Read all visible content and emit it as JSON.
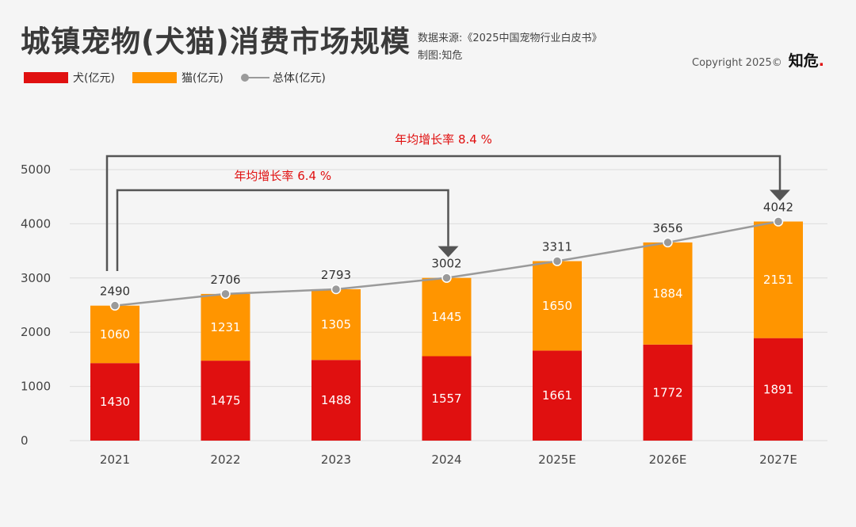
{
  "header": {
    "title": "城镇宠物(犬猫)消费市场规模",
    "source_line1": "数据来源:《2025中国宠物行业白皮书》",
    "source_line2": "制图:知危",
    "copyright": "Copyright 2025©",
    "brand": "知危",
    "brand_dot": "."
  },
  "colors": {
    "dog": "#e01010",
    "cat": "#ff9500",
    "total": "#9a9a9a",
    "arrow": "#555555",
    "cagr": "#e01010"
  },
  "chart_data": {
    "type": "bar",
    "stacked": true,
    "categories": [
      "2021",
      "2022",
      "2023",
      "2024",
      "2025E",
      "2026E",
      "2027E"
    ],
    "series": [
      {
        "name": "犬(亿元)",
        "values": [
          1430,
          1475,
          1488,
          1557,
          1661,
          1772,
          1891
        ]
      },
      {
        "name": "猫(亿元)",
        "values": [
          1060,
          1231,
          1305,
          1445,
          1650,
          1884,
          2151
        ]
      }
    ],
    "total": {
      "name": "总体(亿元)",
      "values": [
        2490,
        2706,
        2793,
        3002,
        3311,
        3656,
        4042
      ]
    },
    "ylim": [
      0,
      5000
    ],
    "yticks": [
      0,
      1000,
      2000,
      3000,
      4000,
      5000
    ],
    "annotations": [
      {
        "text": "年均增长率 6.4 %",
        "from": "2021",
        "to": "2024"
      },
      {
        "text": "年均增长率 8.4 %",
        "from": "2021",
        "to": "2027E"
      }
    ],
    "title": "城镇宠物(犬猫)消费市场规模"
  }
}
